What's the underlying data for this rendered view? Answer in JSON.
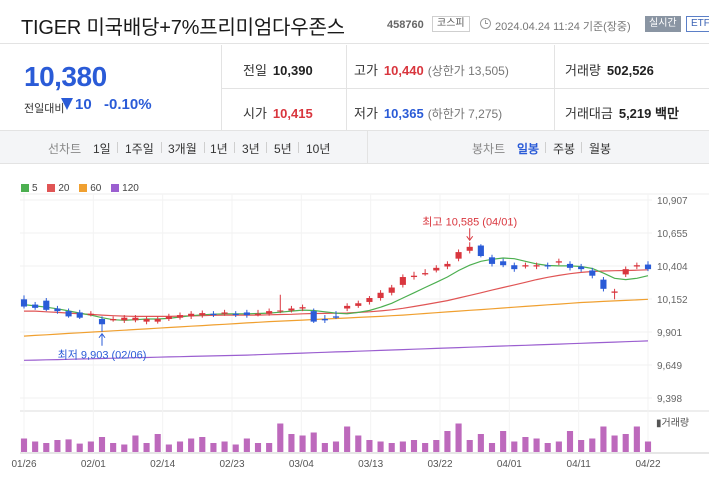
{
  "header": {
    "stock_name": "TIGER 미국배당+7%프리미엄다우존스",
    "stock_code": "458760",
    "market": "코스피",
    "timestamp": "2024.04.24 11:24 기준(장중)",
    "realtime_label": "실시간",
    "etf_label": "ETF"
  },
  "summary": {
    "current_price": "10,380",
    "change_label": "전일대비",
    "change_value": "10",
    "change_pct": "-0.10%",
    "prev_close_label": "전일",
    "prev_close": "10,390",
    "open_label": "시가",
    "open": "10,415",
    "high_label": "고가",
    "high": "10,440",
    "upper_limit": "(상한가 13,505)",
    "low_label": "저가",
    "low": "10,365",
    "lower_limit": "(하한가 7,275)",
    "volume_label": "거래량",
    "volume": "502,526",
    "amount_label": "거래대금",
    "amount": "5,219 백만"
  },
  "toolbar": {
    "line_chart_label": "선차트",
    "periods": [
      "1일",
      "1주일",
      "3개월",
      "1년",
      "3년",
      "5년",
      "10년"
    ],
    "candle_chart_label": "봉차트",
    "candle_periods": [
      "일봉",
      "주봉",
      "월봉"
    ],
    "active_candle": "일봉"
  },
  "colors": {
    "up": "#d9363e",
    "down": "#2a5bd7",
    "ma5": "#4caf50",
    "ma20": "#e05555",
    "ma60": "#f0a030",
    "ma120": "#9b5fd0"
  },
  "chart_data": {
    "type": "candlestick",
    "legend": [
      {
        "name": "5",
        "color": "#4caf50"
      },
      {
        "name": "20",
        "color": "#e05555"
      },
      {
        "name": "60",
        "color": "#f0a030"
      },
      {
        "name": "120",
        "color": "#9b5fd0"
      }
    ],
    "y_ticks": [
      "10,907",
      "10,655",
      "10,404",
      "10,152",
      "9,901",
      "9,649",
      "9,398"
    ],
    "ylim": [
      9398,
      10907
    ],
    "x_ticks": [
      "01/26",
      "02/01",
      "02/14",
      "02/23",
      "03/04",
      "03/13",
      "03/22",
      "04/01",
      "04/11",
      "04/22"
    ],
    "high_annotation": "최고 10,585 (04/01)",
    "low_annotation": "최저 9,903 (02/06)",
    "volume_label": "거래량",
    "candles": [
      {
        "o": 10150,
        "c": 10095,
        "h": 10180,
        "l": 10080
      },
      {
        "o": 10110,
        "c": 10085,
        "h": 10130,
        "l": 10070
      },
      {
        "o": 10140,
        "c": 10070,
        "h": 10160,
        "l": 10060
      },
      {
        "o": 10080,
        "c": 10060,
        "h": 10100,
        "l": 10040
      },
      {
        "o": 10060,
        "c": 10020,
        "h": 10080,
        "l": 10010
      },
      {
        "o": 10050,
        "c": 10010,
        "h": 10070,
        "l": 10000
      },
      {
        "o": 10030,
        "c": 10040,
        "h": 10060,
        "l": 10020
      },
      {
        "o": 10000,
        "c": 9960,
        "h": 10020,
        "l": 9903
      },
      {
        "o": 9990,
        "c": 10000,
        "h": 10020,
        "l": 9980
      },
      {
        "o": 9990,
        "c": 10010,
        "h": 10030,
        "l": 9970
      },
      {
        "o": 9990,
        "c": 10010,
        "h": 10030,
        "l": 9975
      },
      {
        "o": 9980,
        "c": 10000,
        "h": 10020,
        "l": 9960
      },
      {
        "o": 9980,
        "c": 10000,
        "h": 10020,
        "l": 9965
      },
      {
        "o": 10000,
        "c": 10020,
        "h": 10040,
        "l": 9985
      },
      {
        "o": 10010,
        "c": 10030,
        "h": 10050,
        "l": 9995
      },
      {
        "o": 10020,
        "c": 10040,
        "h": 10060,
        "l": 10000
      },
      {
        "o": 10030,
        "c": 10045,
        "h": 10065,
        "l": 10010
      },
      {
        "o": 10040,
        "c": 10030,
        "h": 10060,
        "l": 10015
      },
      {
        "o": 10040,
        "c": 10050,
        "h": 10070,
        "l": 10025
      },
      {
        "o": 10040,
        "c": 10030,
        "h": 10060,
        "l": 10015
      },
      {
        "o": 10050,
        "c": 10030,
        "h": 10070,
        "l": 10010
      },
      {
        "o": 10040,
        "c": 10040,
        "h": 10070,
        "l": 10020
      },
      {
        "o": 10040,
        "c": 10060,
        "h": 10080,
        "l": 10025
      },
      {
        "o": 10060,
        "c": 10065,
        "h": 10185,
        "l": 10045
      },
      {
        "o": 10065,
        "c": 10080,
        "h": 10100,
        "l": 10050
      },
      {
        "o": 10080,
        "c": 10090,
        "h": 10110,
        "l": 10060
      },
      {
        "o": 10060,
        "c": 9980,
        "h": 10080,
        "l": 9970
      },
      {
        "o": 10000,
        "c": 9990,
        "h": 10030,
        "l": 9970
      },
      {
        "o": 10020,
        "c": 10010,
        "h": 10060,
        "l": 10000
      },
      {
        "o": 10080,
        "c": 10100,
        "h": 10120,
        "l": 10060
      },
      {
        "o": 10100,
        "c": 10120,
        "h": 10140,
        "l": 10085
      },
      {
        "o": 10130,
        "c": 10160,
        "h": 10175,
        "l": 10110
      },
      {
        "o": 10160,
        "c": 10200,
        "h": 10220,
        "l": 10140
      },
      {
        "o": 10200,
        "c": 10240,
        "h": 10260,
        "l": 10180
      },
      {
        "o": 10260,
        "c": 10320,
        "h": 10340,
        "l": 10240
      },
      {
        "o": 10320,
        "c": 10330,
        "h": 10360,
        "l": 10300
      },
      {
        "o": 10340,
        "c": 10350,
        "h": 10380,
        "l": 10330
      },
      {
        "o": 10370,
        "c": 10390,
        "h": 10410,
        "l": 10355
      },
      {
        "o": 10400,
        "c": 10420,
        "h": 10440,
        "l": 10380
      },
      {
        "o": 10460,
        "c": 10510,
        "h": 10530,
        "l": 10440
      },
      {
        "o": 10520,
        "c": 10550,
        "h": 10585,
        "l": 10500
      },
      {
        "o": 10560,
        "c": 10480,
        "h": 10570,
        "l": 10470
      },
      {
        "o": 10470,
        "c": 10420,
        "h": 10490,
        "l": 10400
      },
      {
        "o": 10440,
        "c": 10410,
        "h": 10460,
        "l": 10395
      },
      {
        "o": 10410,
        "c": 10380,
        "h": 10430,
        "l": 10360
      },
      {
        "o": 10400,
        "c": 10410,
        "h": 10430,
        "l": 10385
      },
      {
        "o": 10400,
        "c": 10410,
        "h": 10430,
        "l": 10380
      },
      {
        "o": 10410,
        "c": 10400,
        "h": 10430,
        "l": 10380
      },
      {
        "o": 10430,
        "c": 10440,
        "h": 10460,
        "l": 10410
      },
      {
        "o": 10420,
        "c": 10390,
        "h": 10440,
        "l": 10370
      },
      {
        "o": 10400,
        "c": 10380,
        "h": 10420,
        "l": 10360
      },
      {
        "o": 10370,
        "c": 10330,
        "h": 10390,
        "l": 10310
      },
      {
        "o": 10300,
        "c": 10230,
        "h": 10320,
        "l": 10210
      },
      {
        "o": 10200,
        "c": 10210,
        "h": 10230,
        "l": 10150
      },
      {
        "o": 10340,
        "c": 10380,
        "h": 10400,
        "l": 10320
      },
      {
        "o": 10400,
        "c": 10410,
        "h": 10430,
        "l": 10380
      },
      {
        "o": 10415,
        "c": 10380,
        "h": 10440,
        "l": 10365
      }
    ],
    "ma5": [
      10110,
      10100,
      10090,
      10078,
      10062,
      10045,
      10030,
      10010,
      9995,
      9990,
      9995,
      10000,
      10000,
      10005,
      10015,
      10025,
      10032,
      10037,
      10040,
      10040,
      10040,
      10042,
      10045,
      10052,
      10060,
      10068,
      10065,
      10055,
      10045,
      10040,
      10050,
      10065,
      10090,
      10120,
      10160,
      10200,
      10240,
      10280,
      10320,
      10370,
      10410,
      10440,
      10455,
      10465,
      10460,
      10440,
      10420,
      10408,
      10405,
      10405,
      10400,
      10385,
      10350,
      10310,
      10300,
      10310,
      10330
    ],
    "ma20": [
      10060,
      10060,
      10055,
      10050,
      10045,
      10040,
      10035,
      10030,
      10025,
      10022,
      10020,
      10020,
      10020,
      10020,
      10022,
      10024,
      10026,
      10028,
      10030,
      10030,
      10030,
      10030,
      10032,
      10034,
      10036,
      10040,
      10042,
      10043,
      10044,
      10046,
      10050,
      10055,
      10062,
      10070,
      10082,
      10095,
      10110,
      10125,
      10140,
      10160,
      10180,
      10200,
      10220,
      10240,
      10260,
      10280,
      10300,
      10318,
      10332,
      10345,
      10355,
      10362,
      10366,
      10368,
      10370,
      10372,
      10375
    ],
    "ma60": [
      9870,
      9875,
      9880,
      9885,
      9890,
      9895,
      9900,
      9905,
      9910,
      9915,
      9920,
      9925,
      9930,
      9935,
      9940,
      9945,
      9950,
      9955,
      9960,
      9965,
      9970,
      9975,
      9980,
      9984,
      9988,
      9992,
      9996,
      10000,
      10004,
      10008,
      10012,
      10016,
      10020,
      10025,
      10030,
      10036,
      10042,
      10048,
      10054,
      10060,
      10066,
      10072,
      10078,
      10084,
      10090,
      10096,
      10102,
      10108,
      10114,
      10120,
      10126,
      10130,
      10134,
      10138,
      10142,
      10146,
      10150
    ],
    "ma120": [
      9685,
      9687,
      9689,
      9691,
      9693,
      9695,
      9697,
      9699,
      9701,
      9703,
      9705,
      9707,
      9709,
      9711,
      9713,
      9715,
      9717,
      9719,
      9721,
      9723,
      9725,
      9728,
      9731,
      9734,
      9737,
      9740,
      9743,
      9746,
      9749,
      9752,
      9755,
      9758,
      9761,
      9764,
      9767,
      9770,
      9773,
      9776,
      9779,
      9782,
      9785,
      9788,
      9791,
      9794,
      9797,
      9800,
      9803,
      9806,
      9809,
      9812,
      9815,
      9818,
      9821,
      9824,
      9827,
      9830,
      9833
    ],
    "volume": [
      0.45,
      0.35,
      0.3,
      0.4,
      0.42,
      0.28,
      0.35,
      0.5,
      0.3,
      0.25,
      0.55,
      0.3,
      0.6,
      0.25,
      0.35,
      0.45,
      0.5,
      0.3,
      0.35,
      0.25,
      0.45,
      0.3,
      0.3,
      0.95,
      0.6,
      0.55,
      0.65,
      0.3,
      0.35,
      0.85,
      0.55,
      0.4,
      0.35,
      0.3,
      0.35,
      0.4,
      0.3,
      0.4,
      0.7,
      0.95,
      0.4,
      0.6,
      0.3,
      0.7,
      0.35,
      0.5,
      0.45,
      0.3,
      0.35,
      0.7,
      0.4,
      0.45,
      0.85,
      0.55,
      0.6,
      0.85,
      0.35
    ]
  }
}
